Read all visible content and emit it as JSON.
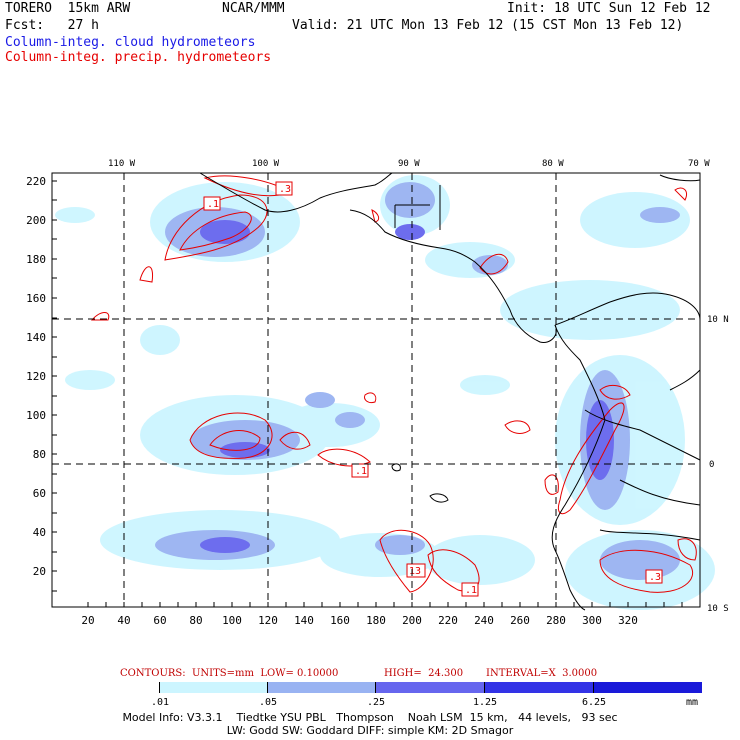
{
  "header": {
    "model_line": "TORERO  15km ARW",
    "org": "NCAR/MMM",
    "init": "Init: 18 UTC Sun 12 Feb 12",
    "fcst": "Fcst:   27 h",
    "valid": "Valid: 21 UTC Mon 13 Feb 12 (15 CST Mon 13 Feb 12)",
    "legend_blue": "Column-integ. cloud hydrometeors",
    "legend_red": "Column-integ. precip. hydrometeors"
  },
  "colors": {
    "blue_text": "#1a1ae6",
    "red_text": "#e60000",
    "contour": "#e60000"
  },
  "map": {
    "top_lon_labels": [
      "110 W",
      "100 W",
      "90 W",
      "80 W",
      "70 W"
    ],
    "right_lat_labels": [
      "10 N",
      "0",
      "10 S"
    ],
    "left_ticks": [
      "220",
      "200",
      "180",
      "160",
      "140",
      "120",
      "100",
      "80",
      "60",
      "40",
      "20"
    ],
    "bottom_ticks": [
      "20",
      "40",
      "60",
      "80",
      "100",
      "120",
      "140",
      "160",
      "180",
      "200",
      "220",
      "240",
      "260",
      "280",
      "300",
      "320"
    ],
    "contour_labels": [
      ".1",
      ".3",
      ".1",
      "13",
      ".1",
      ".3"
    ]
  },
  "contour_info": {
    "contours": "CONTOURS:  UNITS=mm  LOW= 0.10000",
    "high": "HIGH=  24.300",
    "interval": "INTERVAL=X  3.0000"
  },
  "colorbar": {
    "colors": [
      "#ffffff",
      "#ccf5ff",
      "#99b3f2",
      "#6666ee",
      "#3333e6",
      "#1a1ad9"
    ],
    "labels": [
      ".01",
      ".05",
      ".25",
      "1.25",
      "6.25"
    ],
    "unit": "mm"
  },
  "footer": {
    "line1": "Model Info: V3.3.1    Tiedtke YSU PBL   Thompson    Noah LSM  15 km,   44 levels,   93 sec",
    "line2": "LW: Godd SW: Goddard DIFF: simple KM: 2D Smagor"
  }
}
